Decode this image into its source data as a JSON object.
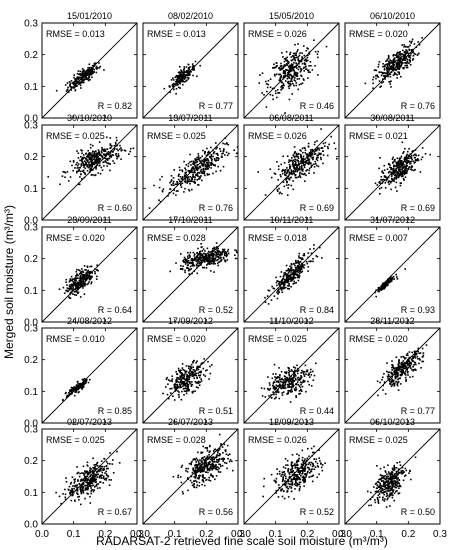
{
  "figure": {
    "ylabel": "Merged soil moisture (m³/m³)",
    "xlabel": "RADARSAT-2 retrieved fine scale soil moisture (m³/m³)"
  },
  "chart_data": [
    {
      "type": "scatter",
      "title": "15/01/2010",
      "rmse": "RMSE = 0.013",
      "r": "R = 0.82",
      "xlim": [
        0,
        0.3
      ],
      "ylim": [
        0,
        0.3
      ],
      "centroid": [
        0.13,
        0.13
      ],
      "spread": [
        0.024,
        0.02
      ],
      "corr": 0.82,
      "count": 220,
      "identity_line": true
    },
    {
      "type": "scatter",
      "title": "08/02/2010",
      "rmse": "RMSE = 0.013",
      "r": "R = 0.77",
      "xlim": [
        0,
        0.3
      ],
      "ylim": [
        0,
        0.3
      ],
      "centroid": [
        0.125,
        0.13
      ],
      "spread": [
        0.02,
        0.018
      ],
      "corr": 0.77,
      "count": 180,
      "identity_line": true
    },
    {
      "type": "scatter",
      "title": "15/05/2010",
      "rmse": "RMSE = 0.026",
      "r": "R = 0.46",
      "xlim": [
        0,
        0.3
      ],
      "ylim": [
        0,
        0.3
      ],
      "centroid": [
        0.15,
        0.15
      ],
      "spread": [
        0.035,
        0.035
      ],
      "corr": 0.46,
      "count": 320,
      "identity_line": true
    },
    {
      "type": "scatter",
      "title": "06/10/2010",
      "rmse": "RMSE = 0.020",
      "r": "R = 0.76",
      "xlim": [
        0,
        0.3
      ],
      "ylim": [
        0,
        0.3
      ],
      "centroid": [
        0.16,
        0.17
      ],
      "spread": [
        0.032,
        0.03
      ],
      "corr": 0.76,
      "count": 320,
      "identity_line": true
    },
    {
      "type": "scatter",
      "title": "30/10/2010",
      "rmse": "RMSE = 0.025",
      "r": "R = 0.60",
      "xlim": [
        0,
        0.3
      ],
      "ylim": [
        0,
        0.3
      ],
      "centroid": [
        0.17,
        0.19
      ],
      "spread": [
        0.04,
        0.025
      ],
      "corr": 0.6,
      "count": 340,
      "identity_line": true
    },
    {
      "type": "scatter",
      "title": "13/07/2011",
      "rmse": "RMSE = 0.025",
      "r": "R = 0.76",
      "xlim": [
        0,
        0.3
      ],
      "ylim": [
        0,
        0.3
      ],
      "centroid": [
        0.17,
        0.16
      ],
      "spread": [
        0.045,
        0.035
      ],
      "corr": 0.76,
      "count": 340,
      "identity_line": true
    },
    {
      "type": "scatter",
      "title": "06/08/2011",
      "rmse": "RMSE = 0.026",
      "r": "R = 0.69",
      "xlim": [
        0,
        0.3
      ],
      "ylim": [
        0,
        0.3
      ],
      "centroid": [
        0.18,
        0.18
      ],
      "spread": [
        0.04,
        0.035
      ],
      "corr": 0.69,
      "count": 320,
      "identity_line": true
    },
    {
      "type": "scatter",
      "title": "30/08/2011",
      "rmse": "RMSE = 0.021",
      "r": "R = 0.69",
      "xlim": [
        0,
        0.3
      ],
      "ylim": [
        0,
        0.3
      ],
      "centroid": [
        0.17,
        0.16
      ],
      "spread": [
        0.03,
        0.03
      ],
      "corr": 0.69,
      "count": 300,
      "identity_line": true
    },
    {
      "type": "scatter",
      "title": "23/09/2011",
      "rmse": "RMSE = 0.020",
      "r": "R = 0.64",
      "xlim": [
        0,
        0.3
      ],
      "ylim": [
        0,
        0.3
      ],
      "centroid": [
        0.12,
        0.13
      ],
      "spread": [
        0.022,
        0.022
      ],
      "corr": 0.64,
      "count": 260,
      "identity_line": true
    },
    {
      "type": "scatter",
      "title": "17/10/2011",
      "rmse": "RMSE = 0.028",
      "r": "R = 0.52",
      "xlim": [
        0,
        0.3
      ],
      "ylim": [
        0,
        0.3
      ],
      "centroid": [
        0.2,
        0.2
      ],
      "spread": [
        0.04,
        0.018
      ],
      "corr": 0.52,
      "count": 340,
      "identity_line": true
    },
    {
      "type": "scatter",
      "title": "10/11/2011",
      "rmse": "RMSE = 0.018",
      "r": "R = 0.84",
      "xlim": [
        0,
        0.3
      ],
      "ylim": [
        0,
        0.3
      ],
      "centroid": [
        0.15,
        0.15
      ],
      "spread": [
        0.03,
        0.03
      ],
      "corr": 0.84,
      "count": 280,
      "identity_line": true
    },
    {
      "type": "scatter",
      "title": "31/07/2012",
      "rmse": "RMSE = 0.007",
      "r": "R = 0.93",
      "xlim": [
        0,
        0.3
      ],
      "ylim": [
        0,
        0.3
      ],
      "centroid": [
        0.13,
        0.12
      ],
      "spread": [
        0.014,
        0.013
      ],
      "corr": 0.93,
      "count": 120,
      "identity_line": true
    },
    {
      "type": "scatter",
      "title": "24/08/2012",
      "rmse": "RMSE = 0.010",
      "r": "R = 0.85",
      "xlim": [
        0,
        0.3
      ],
      "ylim": [
        0,
        0.3
      ],
      "centroid": [
        0.11,
        0.11
      ],
      "spread": [
        0.016,
        0.013
      ],
      "corr": 0.85,
      "count": 160,
      "identity_line": true
    },
    {
      "type": "scatter",
      "title": "17/09/2012",
      "rmse": "RMSE = 0.020",
      "r": "R = 0.51",
      "xlim": [
        0,
        0.3
      ],
      "ylim": [
        0,
        0.3
      ],
      "centroid": [
        0.14,
        0.14
      ],
      "spread": [
        0.03,
        0.025
      ],
      "corr": 0.51,
      "count": 260,
      "identity_line": true
    },
    {
      "type": "scatter",
      "title": "11/10/2012",
      "rmse": "RMSE = 0.025",
      "r": "R = 0.44",
      "xlim": [
        0,
        0.3
      ],
      "ylim": [
        0,
        0.3
      ],
      "centroid": [
        0.14,
        0.13
      ],
      "spread": [
        0.035,
        0.025
      ],
      "corr": 0.44,
      "count": 280,
      "identity_line": true
    },
    {
      "type": "scatter",
      "title": "28/11/2012",
      "rmse": "RMSE = 0.020",
      "r": "R = 0.77",
      "xlim": [
        0,
        0.3
      ],
      "ylim": [
        0,
        0.3
      ],
      "centroid": [
        0.18,
        0.17
      ],
      "spread": [
        0.032,
        0.028
      ],
      "corr": 0.77,
      "count": 300,
      "identity_line": true
    },
    {
      "type": "scatter",
      "title": "02/07/2013",
      "rmse": "RMSE = 0.025",
      "r": "R = 0.67",
      "xlim": [
        0,
        0.3
      ],
      "ylim": [
        0,
        0.3
      ],
      "centroid": [
        0.15,
        0.14
      ],
      "spread": [
        0.035,
        0.03
      ],
      "corr": 0.67,
      "count": 340,
      "identity_line": true
    },
    {
      "type": "scatter",
      "title": "26/07/2013",
      "rmse": "RMSE = 0.028",
      "r": "R = 0.56",
      "xlim": [
        0,
        0.3
      ],
      "ylim": [
        0,
        0.3
      ],
      "centroid": [
        0.2,
        0.18
      ],
      "spread": [
        0.035,
        0.03
      ],
      "corr": 0.56,
      "count": 340,
      "identity_line": true
    },
    {
      "type": "scatter",
      "title": "12/09/2013",
      "rmse": "RMSE = 0.026",
      "r": "R = 0.52",
      "xlim": [
        0,
        0.3
      ],
      "ylim": [
        0,
        0.3
      ],
      "centroid": [
        0.17,
        0.16
      ],
      "spread": [
        0.035,
        0.03
      ],
      "corr": 0.52,
      "count": 320,
      "identity_line": true
    },
    {
      "type": "scatter",
      "title": "06/10/2013",
      "rmse": "RMSE = 0.025",
      "r": "R = 0.50",
      "xlim": [
        0,
        0.3
      ],
      "ylim": [
        0,
        0.3
      ],
      "centroid": [
        0.14,
        0.13
      ],
      "spread": [
        0.025,
        0.03
      ],
      "corr": 0.5,
      "count": 300,
      "identity_line": true
    }
  ],
  "axes": {
    "x_ticks": [
      "0.0",
      "0.1",
      "0.2",
      "0.3"
    ],
    "y_ticks": [
      "0.0",
      "0.1",
      "0.2",
      "0.3"
    ]
  }
}
